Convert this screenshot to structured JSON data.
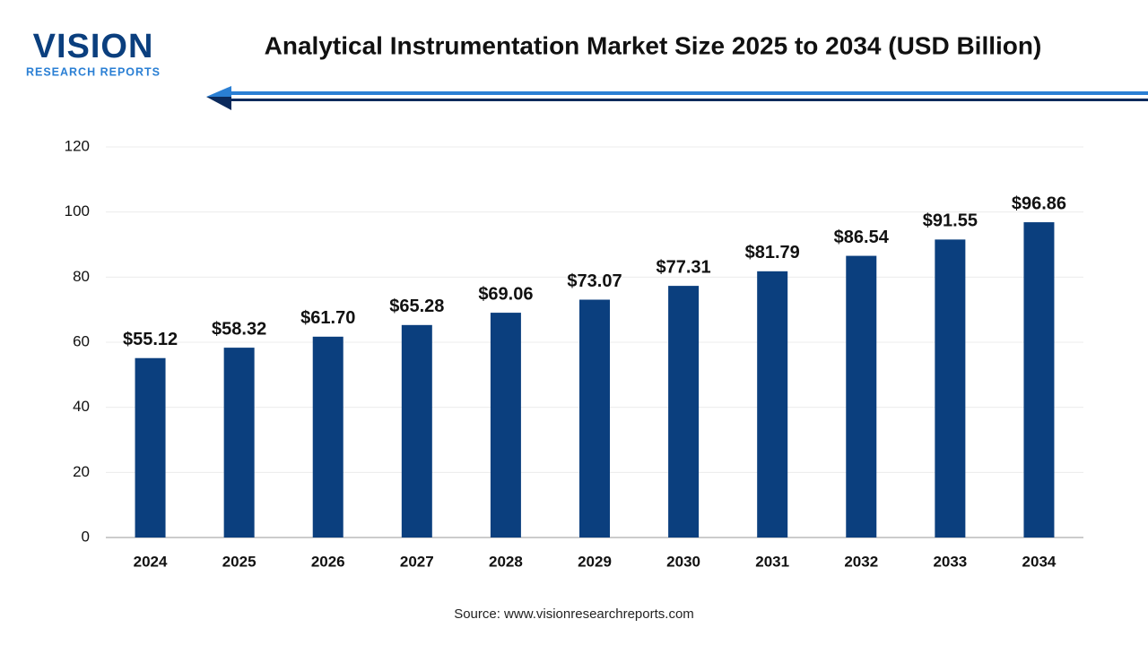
{
  "logo": {
    "name": "VISION",
    "tagline": "RESEARCH REPORTS"
  },
  "chart_data": {
    "type": "bar",
    "title": "Analytical Instrumentation Market Size 2025 to 2034 (USD Billion)",
    "categories": [
      "2024",
      "2025",
      "2026",
      "2027",
      "2028",
      "2029",
      "2030",
      "2031",
      "2032",
      "2033",
      "2034"
    ],
    "values": [
      55.12,
      58.32,
      61.7,
      65.28,
      69.06,
      73.07,
      77.31,
      81.79,
      86.54,
      91.55,
      96.86
    ],
    "value_labels": [
      "$55.12",
      "$58.32",
      "$61.70",
      "$65.28",
      "$69.06",
      "$73.07",
      "$77.31",
      "$81.79",
      "$86.54",
      "$91.55",
      "$96.86"
    ],
    "color": "#0b3f7e",
    "ylim": [
      0,
      120
    ],
    "yticks": [
      0,
      20,
      40,
      60,
      80,
      100,
      120
    ],
    "grid": true,
    "source": "Source: www.visionresearchreports.com"
  }
}
